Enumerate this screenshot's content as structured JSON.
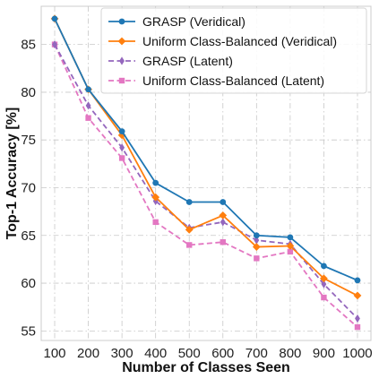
{
  "chart_data": {
    "type": "line",
    "title": "",
    "xlabel": "Number of Classes Seen",
    "ylabel": "Top-1 Accuracy [%]",
    "x": [
      100,
      200,
      300,
      400,
      500,
      600,
      700,
      800,
      900,
      1000
    ],
    "xticks": [
      100,
      200,
      300,
      400,
      500,
      600,
      700,
      800,
      900,
      1000
    ],
    "yticks": [
      55,
      60,
      65,
      70,
      75,
      80,
      85
    ],
    "xlim": [
      60,
      1040
    ],
    "ylim": [
      54,
      89
    ],
    "grid": true,
    "legend_position": "top-right",
    "series": [
      {
        "name": "GRASP (Veridical)",
        "color": "#1f77b4",
        "line_style": "solid",
        "marker": "circle",
        "values": [
          87.7,
          80.3,
          75.9,
          70.5,
          68.5,
          68.5,
          65.0,
          64.8,
          61.8,
          60.3
        ]
      },
      {
        "name": "Uniform Class-Balanced (Veridical)",
        "color": "#ff7f0e",
        "line_style": "solid",
        "marker": "diamond",
        "values": [
          87.7,
          80.3,
          75.5,
          69.0,
          65.6,
          67.1,
          63.8,
          63.9,
          60.5,
          58.7
        ]
      },
      {
        "name": "GRASP (Latent)",
        "color": "#9467bd",
        "line_style": "dashed",
        "marker": "thin-diamond",
        "values": [
          85.0,
          78.6,
          74.2,
          68.6,
          65.8,
          66.4,
          64.5,
          64.1,
          59.9,
          56.3
        ]
      },
      {
        "name": "Uniform Class-Balanced (Latent)",
        "color": "#e377c2",
        "line_style": "dashed",
        "marker": "square",
        "values": [
          85.0,
          77.3,
          73.1,
          66.4,
          64.0,
          64.3,
          62.6,
          63.3,
          58.5,
          55.4
        ]
      }
    ]
  }
}
